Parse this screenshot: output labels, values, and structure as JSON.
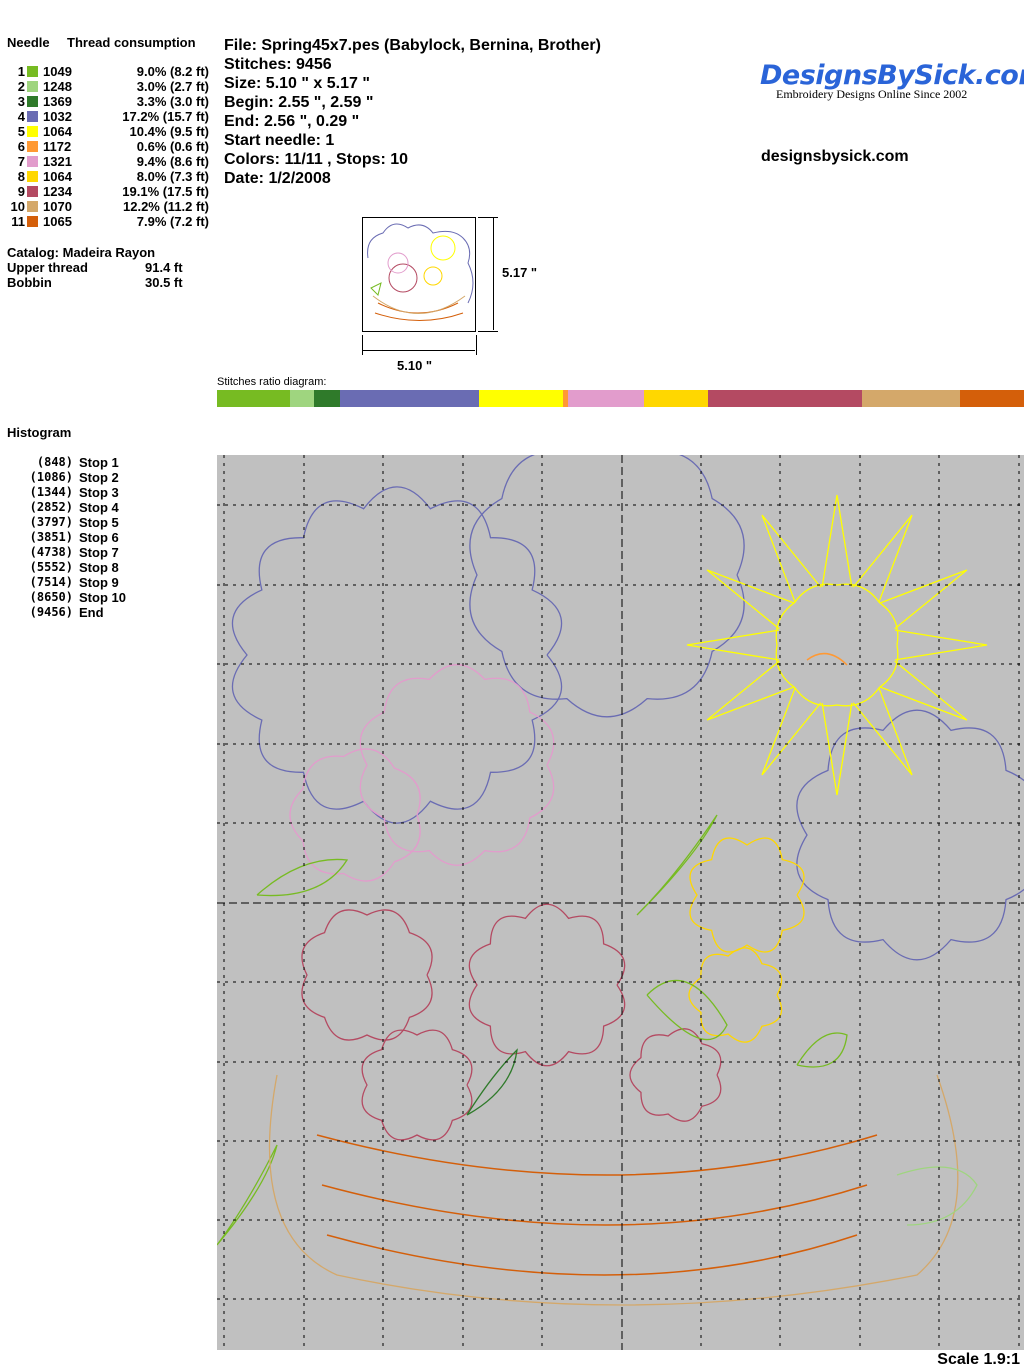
{
  "header": {
    "needle_label": "Needle",
    "thread_label": "Thread consumption"
  },
  "needles": [
    {
      "n": "1",
      "code": "1049",
      "pct": "9.0% (8.2 ft)",
      "color": "#77bb22"
    },
    {
      "n": "2",
      "code": "1248",
      "pct": "3.0% (2.7 ft)",
      "color": "#9fd57f"
    },
    {
      "n": "3",
      "code": "1369",
      "pct": "3.3% (3.0 ft)",
      "color": "#2f7a2a"
    },
    {
      "n": "4",
      "code": "1032",
      "pct": "17.2% (15.7 ft)",
      "color": "#6a6cb3"
    },
    {
      "n": "5",
      "code": "1064",
      "pct": "10.4% (9.5 ft)",
      "color": "#ffff00"
    },
    {
      "n": "6",
      "code": "1172",
      "pct": "0.6% (0.6 ft)",
      "color": "#ff9933"
    },
    {
      "n": "7",
      "code": "1321",
      "pct": "9.4% (8.6 ft)",
      "color": "#e29ccc"
    },
    {
      "n": "8",
      "code": "1064",
      "pct": "8.0% (7.3 ft)",
      "color": "#ffd700"
    },
    {
      "n": "9",
      "code": "1234",
      "pct": "19.1% (17.5 ft)",
      "color": "#b44a62"
    },
    {
      "n": "10",
      "code": "1070",
      "pct": "12.2% (11.2 ft)",
      "color": "#d4a86a"
    },
    {
      "n": "11",
      "code": "1065",
      "pct": "7.9% (7.2 ft)",
      "color": "#d45f0a"
    }
  ],
  "catalog": {
    "label": "Catalog: Madeira Rayon",
    "upper_label": "Upper thread",
    "upper": "91.4 ft",
    "bobbin_label": "Bobbin",
    "bobbin": "30.5 ft"
  },
  "info": {
    "file": "File: Spring45x7.pes  (Babylock, Bernina, Brother)",
    "stitches": "Stitches: 9456",
    "size": "Size: 5.10 \" x 5.17 \"",
    "begin": "Begin: 2.55 \", 2.59 \"",
    "end": "End: 2.56 \", 0.29 \"",
    "start": "Start needle: 1",
    "colors": "Colors: 11/11 , Stops: 10",
    "date": "Date: 1/2/2008"
  },
  "logo": {
    "text": "DesignsBySick.com",
    "tagline": "Embroidery Designs Online Since 2002"
  },
  "site": "designsbysick.com",
  "thumb": {
    "height": "5.17 \"",
    "width": "5.10 \""
  },
  "ratio_label": "Stitches ratio diagram:",
  "histogram": {
    "title": "Histogram",
    "stops": [
      {
        "count": "(848)",
        "label": "Stop 1"
      },
      {
        "count": "(1086)",
        "label": "Stop 2"
      },
      {
        "count": "(1344)",
        "label": "Stop 3"
      },
      {
        "count": "(2852)",
        "label": "Stop 4"
      },
      {
        "count": "(3797)",
        "label": "Stop 5"
      },
      {
        "count": "(3851)",
        "label": "Stop 6"
      },
      {
        "count": "(4738)",
        "label": "Stop 7"
      },
      {
        "count": "(5552)",
        "label": "Stop 8"
      },
      {
        "count": "(7514)",
        "label": "Stop 9"
      },
      {
        "count": "(8650)",
        "label": "Stop 10"
      },
      {
        "count": "(9456)",
        "label": "End"
      }
    ]
  },
  "scale": "Scale 1.9:1"
}
